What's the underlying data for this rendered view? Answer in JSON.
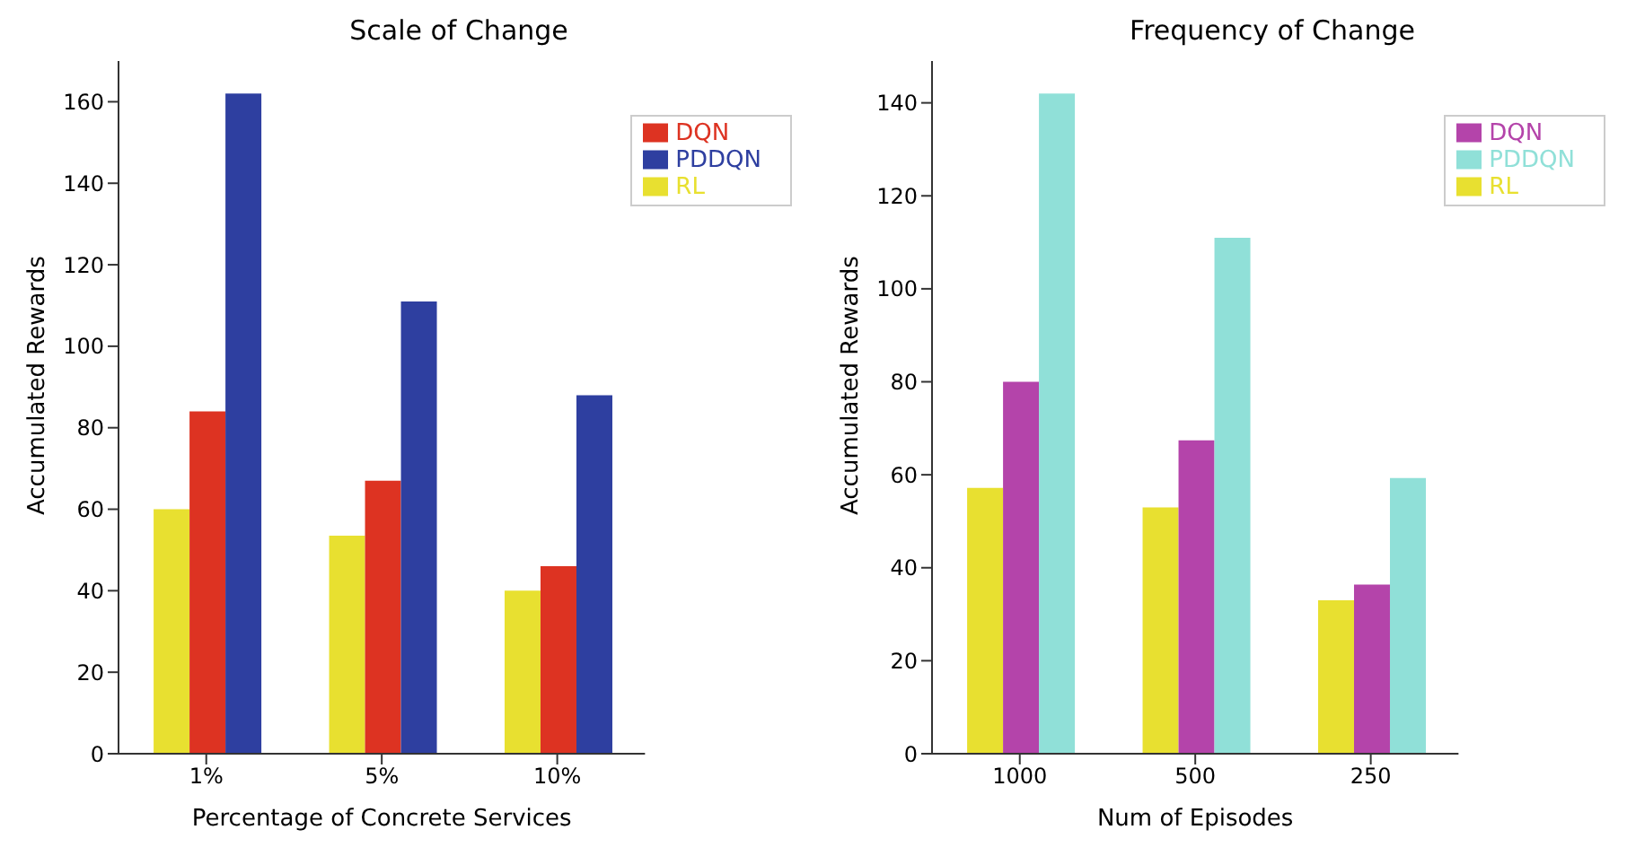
{
  "chart_data": [
    {
      "type": "bar",
      "title": "Scale of Change",
      "xlabel": "Percentage of Concrete Services",
      "ylabel": "Accumulated Rewards",
      "categories": [
        "1%",
        "5%",
        "10%"
      ],
      "series": [
        {
          "name": "RL",
          "color": "#e8e030",
          "values": [
            60,
            53.5,
            40
          ]
        },
        {
          "name": "DQN",
          "color": "#dd3322",
          "values": [
            84,
            67,
            46
          ]
        },
        {
          "name": "PDDQN",
          "color": "#2e3fa0",
          "values": [
            162,
            111,
            88
          ]
        }
      ],
      "ylim": [
        0,
        170
      ],
      "yticks": [
        0,
        20,
        40,
        60,
        80,
        100,
        120,
        140,
        160
      ],
      "grid": false,
      "legend": "top right"
    },
    {
      "type": "bar",
      "title": "Frequency of Change",
      "xlabel": "Num of Episodes",
      "ylabel": "Accumulated Rewards",
      "categories": [
        "1000",
        "500",
        "250"
      ],
      "series": [
        {
          "name": "RL",
          "color": "#e8e030",
          "values": [
            57.2,
            53,
            33
          ]
        },
        {
          "name": "DQN",
          "color": "#b444aa",
          "values": [
            80,
            67.4,
            36.4
          ]
        },
        {
          "name": "PDDQN",
          "color": "#90e0d8",
          "values": [
            142,
            111,
            59.3
          ]
        }
      ],
      "ylim": [
        0,
        149
      ],
      "yticks": [
        0,
        20,
        40,
        60,
        80,
        100,
        120,
        140
      ],
      "grid": false,
      "legend": "top right"
    }
  ]
}
